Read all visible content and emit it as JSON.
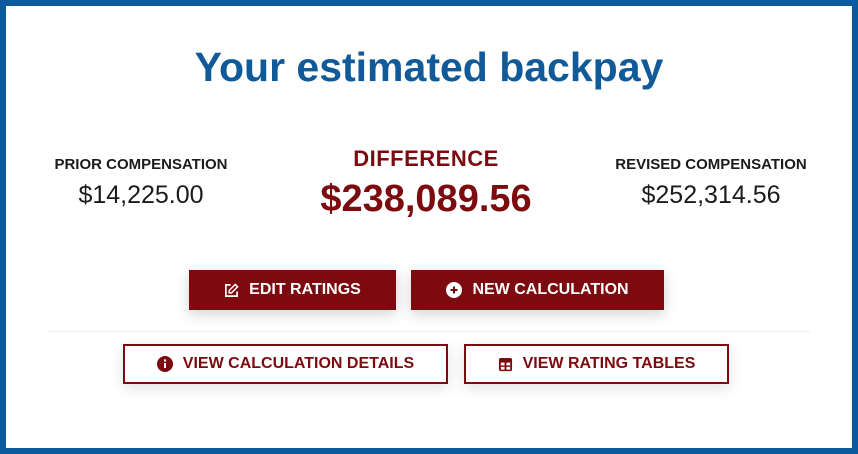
{
  "title": "Your estimated backpay",
  "prior": {
    "label": "PRIOR COMPENSATION",
    "value": "$14,225.00"
  },
  "difference": {
    "label": "DIFFERENCE",
    "value": "$238,089.56"
  },
  "revised": {
    "label": "REVISED COMPENSATION",
    "value": "$252,314.56"
  },
  "buttons": {
    "edit": {
      "label": "EDIT RATINGS",
      "icon": "edit-icon"
    },
    "new": {
      "label": "NEW CALCULATION",
      "icon": "plus-circle-icon"
    },
    "details": {
      "label": "VIEW CALCULATION DETAILS",
      "icon": "info-circle-icon"
    },
    "tables": {
      "label": "VIEW RATING TABLES",
      "icon": "table-icon"
    }
  },
  "colors": {
    "accent": "#7c0a0e",
    "brand": "#105a9a"
  }
}
